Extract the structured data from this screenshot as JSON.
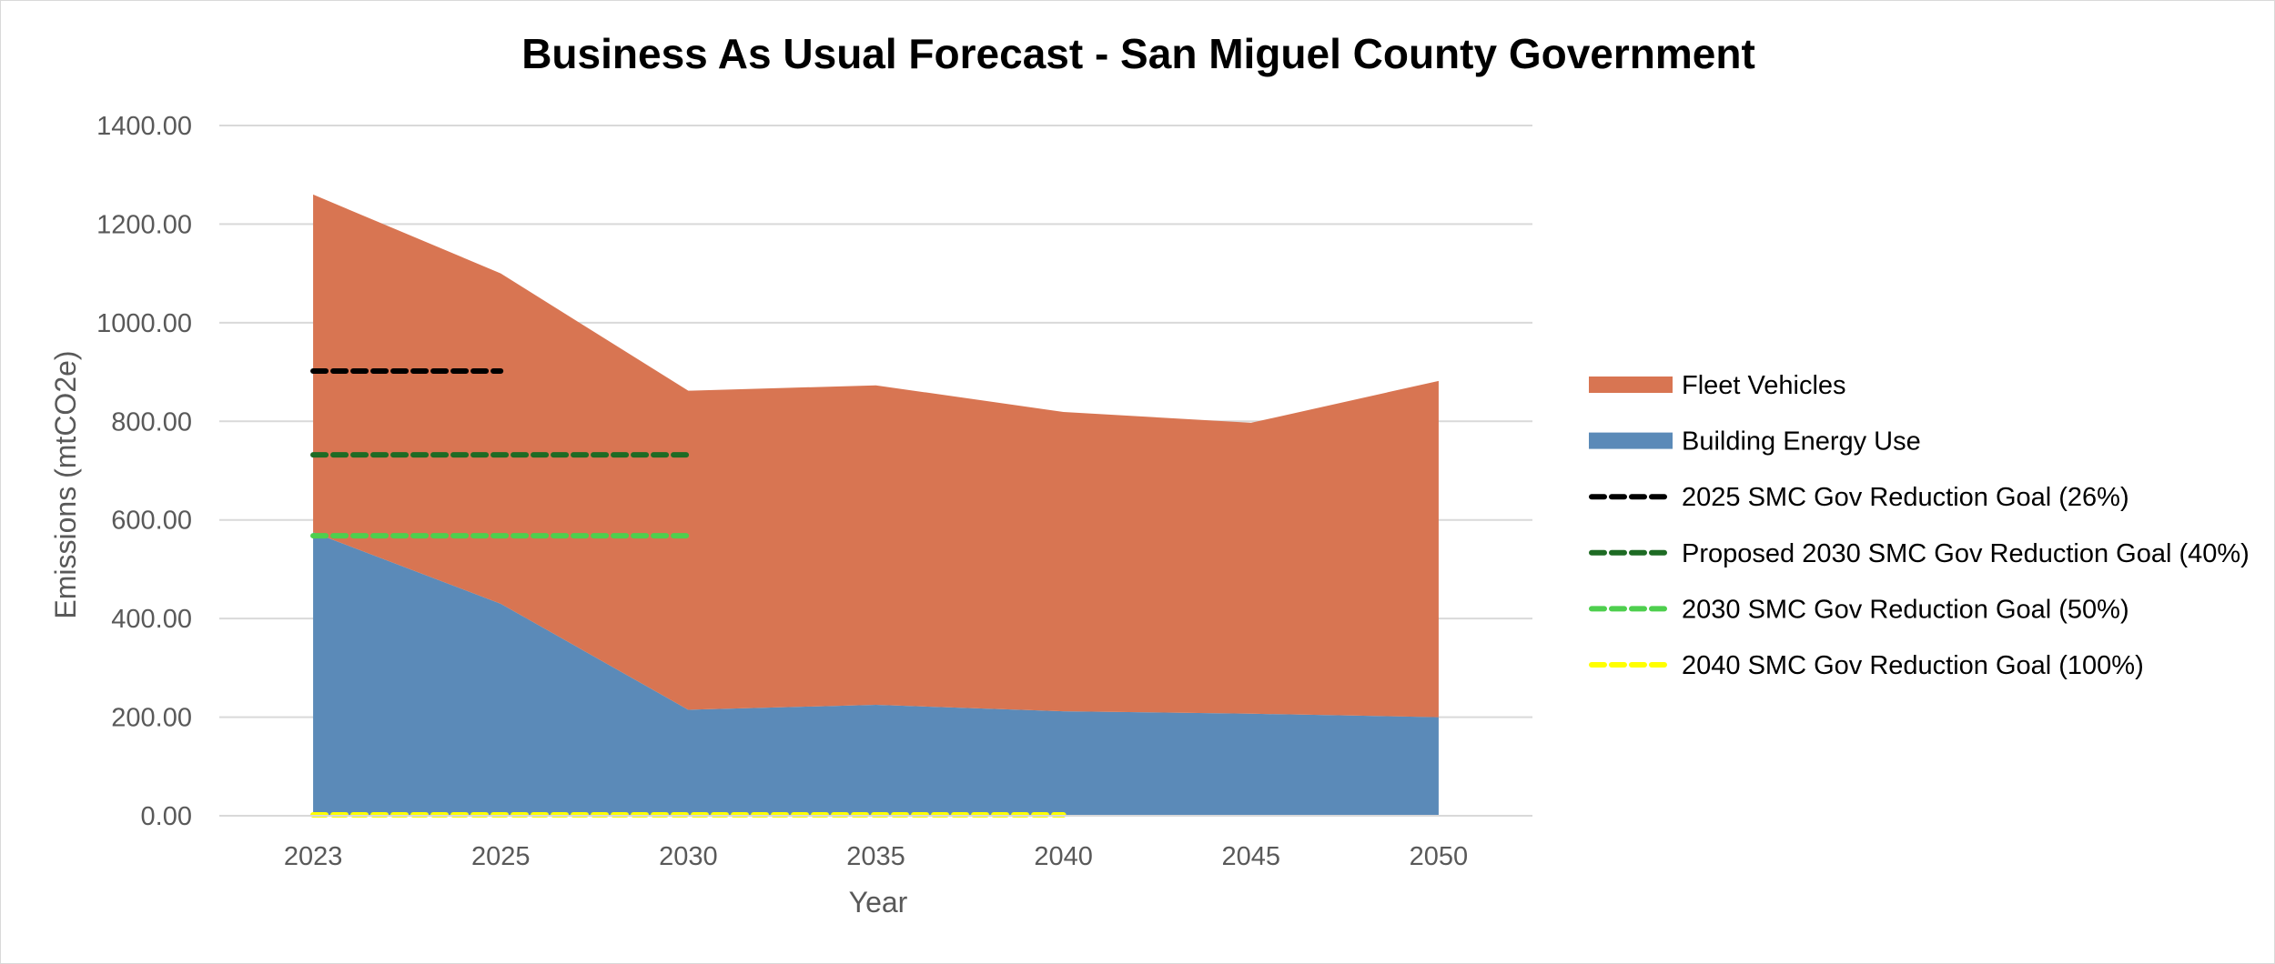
{
  "chart_data": {
    "type": "area",
    "title": "Business As Usual Forecast - San Miguel County Government",
    "xlabel": "Year",
    "ylabel": "Emissions (mtCO2e)",
    "categories": [
      "2023",
      "2025",
      "2030",
      "2035",
      "2040",
      "2045",
      "2050"
    ],
    "ylim": [
      0,
      1400
    ],
    "ytick_step": 200,
    "ytick_labels": [
      "0.00",
      "200.00",
      "400.00",
      "600.00",
      "800.00",
      "1000.00",
      "1200.00",
      "1400.00"
    ],
    "grid": true,
    "legend_position": "right",
    "series": [
      {
        "name": "Building Energy Use",
        "kind": "stacked-area",
        "color": "#5b8ab8",
        "values": [
          575,
          430,
          215,
          225,
          212,
          207,
          200
        ]
      },
      {
        "name": "Fleet Vehicles",
        "kind": "stacked-area",
        "color": "#d87552",
        "values": [
          685,
          670,
          647,
          648,
          607,
          590,
          682
        ]
      }
    ],
    "goal_lines": [
      {
        "name": "2025 SMC Gov Reduction Goal (26%)",
        "color": "#000000",
        "value": 902,
        "from": "2023",
        "to": "2025"
      },
      {
        "name": "Proposed 2030 SMC Gov Reduction Goal (40%)",
        "color": "#1e6b24",
        "value": 732,
        "from": "2023",
        "to": "2030"
      },
      {
        "name": "2030 SMC Gov Reduction Goal (50%)",
        "color": "#4ecf4e",
        "value": 568,
        "from": "2023",
        "to": "2030"
      },
      {
        "name": "2040 SMC Gov Reduction Goal (100%)",
        "color": "#ffff00",
        "value": 0,
        "from": "2023",
        "to": "2040"
      }
    ],
    "legend_order": [
      "Fleet Vehicles",
      "Building Energy Use",
      "2025 SMC Gov Reduction Goal (26%)",
      "Proposed 2030 SMC Gov Reduction Goal (40%)",
      "2030 SMC Gov Reduction Goal (50%)",
      "2040 SMC Gov Reduction Goal (100%)"
    ]
  }
}
